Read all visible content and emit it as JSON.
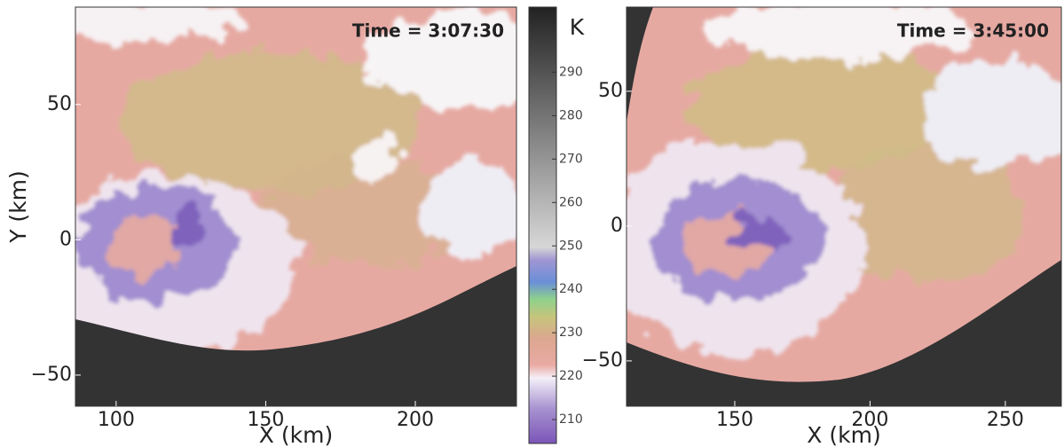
{
  "chart_data": [
    {
      "type": "heatmap",
      "annotation": "Time = 3:07:30",
      "xlabel": "X (km)",
      "ylabel": "Y (km)",
      "xlim": [
        86.4,
        233.8
      ],
      "ylim": [
        -61.5,
        86
      ],
      "xticks": [
        100,
        150,
        200
      ],
      "yticks": [
        {
          "value": -50,
          "label": "−50"
        },
        0,
        50
      ]
    },
    {
      "type": "heatmap",
      "annotation": "Time = 3:45:00",
      "xlabel": "X (km)",
      "xlim": [
        110,
        270.7
      ],
      "ylim": [
        -66.8,
        81.2
      ],
      "xticks": [
        150,
        200,
        250
      ],
      "yticks": [
        {
          "value": -50,
          "label": "−50"
        },
        0,
        50
      ]
    }
  ],
  "colorbar": {
    "label": "K",
    "lim": [
      204.5,
      305
    ],
    "ticks": [
      210,
      220,
      230,
      240,
      250,
      260,
      270,
      280,
      290
    ]
  }
}
